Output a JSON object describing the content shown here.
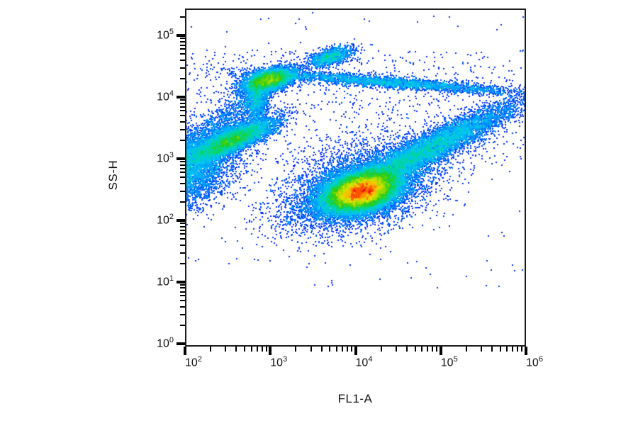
{
  "figure": {
    "background": "#ffffff",
    "border_color": "#1c1c1c",
    "tick_color": "#000000",
    "text_color": "#111111"
  },
  "chart_data": {
    "type": "scatter",
    "subtype": "flow-cytometry-pseudocolor-density",
    "title": "",
    "xlabel": "FL1-A",
    "ylabel": "SS-H",
    "x_scale": "log",
    "y_scale": "log",
    "xlim": [
      100,
      1000000
    ],
    "ylim": [
      0.9,
      275000
    ],
    "tick_base": "10",
    "x_tick_exponents": [
      2,
      3,
      4,
      5,
      6
    ],
    "y_tick_exponents": [
      0,
      1,
      2,
      3,
      4,
      5
    ],
    "grid": false,
    "legend": false,
    "colormap": {
      "name": "density-jet",
      "low_density_color": "#0000c8",
      "high_density_color": "#e81400",
      "stops": [
        [
          0.0,
          "#0000c8"
        ],
        [
          0.13,
          "#0028ff"
        ],
        [
          0.26,
          "#0090ff"
        ],
        [
          0.38,
          "#00c8f0"
        ],
        [
          0.5,
          "#00d890"
        ],
        [
          0.6,
          "#28cc14"
        ],
        [
          0.7,
          "#90dc00"
        ],
        [
          0.79,
          "#e0e400"
        ],
        [
          0.86,
          "#ffb400"
        ],
        [
          0.92,
          "#ff5a00"
        ],
        [
          1.0,
          "#e81400"
        ]
      ],
      "density_gamma": 0.4
    },
    "populations": [
      {
        "name": "main-population-core",
        "fl1": 11500,
        "ssh": 300,
        "sigma_log_fl1": 0.21,
        "sigma_log_ssh": 0.16,
        "corr": 0.35,
        "events": 26000
      },
      {
        "name": "main-population-tail",
        "fl1": 56000,
        "ssh": 1250,
        "sigma_log_fl1": 0.55,
        "sigma_log_ssh": 0.4,
        "corr": 0.94,
        "events": 9000
      },
      {
        "name": "main-population-halo",
        "fl1": 11000,
        "ssh": 350,
        "sigma_log_fl1": 0.46,
        "sigma_log_ssh": 0.36,
        "corr": 0.4,
        "events": 5500
      },
      {
        "name": "left-edge-debris-band",
        "fl1": 85,
        "ssh": 700,
        "sigma_log_fl1": 0.3,
        "sigma_log_ssh": 0.3,
        "corr": 0.2,
        "events": 7000
      },
      {
        "name": "left-mid-cluster",
        "fl1": 355,
        "ssh": 2050,
        "sigma_log_fl1": 0.24,
        "sigma_log_ssh": 0.17,
        "corr": 0.8,
        "events": 6500
      },
      {
        "name": "upper-left-bright-cluster",
        "fl1": 950,
        "ssh": 19500,
        "sigma_log_fl1": 0.155,
        "sigma_log_ssh": 0.095,
        "corr": 0.45,
        "events": 5000
      },
      {
        "name": "upper-left-neck",
        "fl1": 680,
        "ssh": 9000,
        "sigma_log_fl1": 0.07,
        "sigma_log_ssh": 0.17,
        "corr": 0.1,
        "events": 1200
      },
      {
        "name": "left-diagonal-bridge",
        "fl1": 280,
        "ssh": 4000,
        "sigma_log_fl1": 0.3,
        "sigma_log_ssh": 0.4,
        "corr": 0.9,
        "events": 1300
      },
      {
        "name": "top-small-cluster",
        "fl1": 4900,
        "ssh": 46000,
        "sigma_log_fl1": 0.13,
        "sigma_log_ssh": 0.085,
        "corr": 0.55,
        "events": 1200
      },
      {
        "name": "upper-diagonal-streak",
        "fl1": 25000,
        "ssh": 17800,
        "sigma_log_fl1": 0.75,
        "sigma_log_ssh": 0.09,
        "corr": -0.85,
        "events": 3000
      },
      {
        "name": "background-upper-scatter",
        "type": "uniform",
        "fl1_range": [
          100,
          1000000
        ],
        "ssh_range": [
          800,
          60000
        ],
        "events": 900
      },
      {
        "name": "background-sparse",
        "type": "uniform",
        "fl1_range": [
          100,
          1000000
        ],
        "ssh_range": [
          8,
          240000
        ],
        "events": 170
      }
    ]
  }
}
